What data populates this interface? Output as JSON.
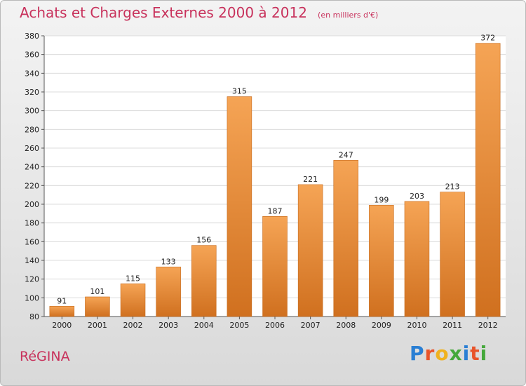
{
  "header": {
    "title": "Achats et Charges Externes 2000 à 2012",
    "unit": "(en milliers d'€)"
  },
  "footer": {
    "commune": "RéGINA",
    "logo_text": "Proxiti"
  },
  "colors": {
    "title": "#c8325c",
    "bar_light": "#f5a455",
    "bar_dark": "#d0701f",
    "logo_letters": [
      "#2a7fd4",
      "#e8542a",
      "#f0b21f",
      "#45a83b",
      "#2a7fd4",
      "#e8542a",
      "#45a83b"
    ]
  },
  "chart_data": {
    "type": "bar",
    "title": "Achats et Charges Externes 2000 à 2012",
    "subtitle": "(en milliers d'€)",
    "xlabel": "",
    "ylabel": "",
    "categories": [
      "2000",
      "2001",
      "2002",
      "2003",
      "2004",
      "2005",
      "2006",
      "2007",
      "2008",
      "2009",
      "2010",
      "2011",
      "2012"
    ],
    "values": [
      91,
      101,
      115,
      133,
      156,
      315,
      187,
      221,
      247,
      199,
      203,
      213,
      372
    ],
    "ylim": [
      80,
      380
    ],
    "yticks": [
      80,
      100,
      120,
      140,
      160,
      180,
      200,
      220,
      240,
      260,
      280,
      300,
      320,
      340,
      360,
      380
    ],
    "grid": true,
    "legend": "none"
  }
}
